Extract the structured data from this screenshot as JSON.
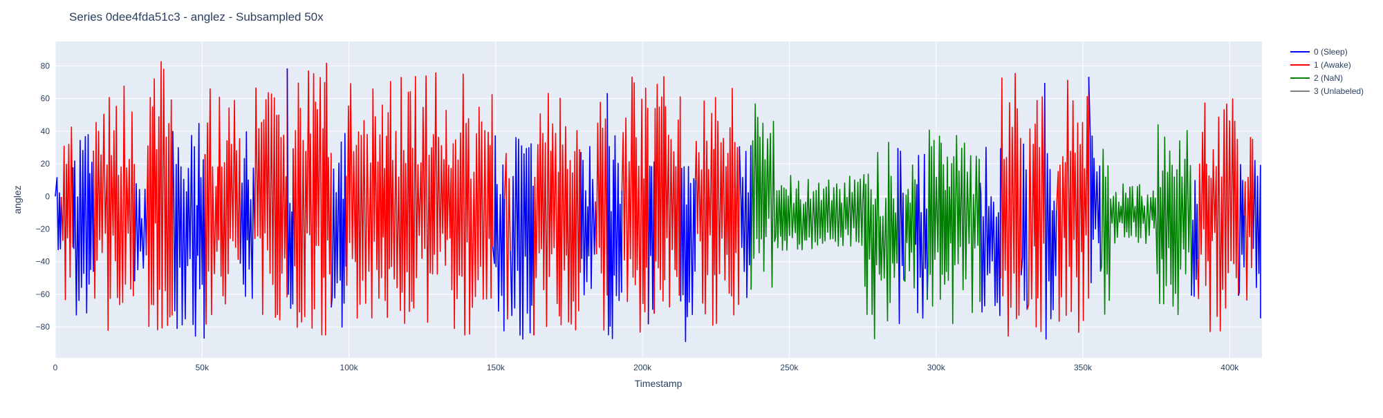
{
  "chart_data": {
    "type": "line",
    "title": "Series 0dee4fda51c3 - anglez - Subsampled 50x",
    "xlabel": "Timestamp",
    "ylabel": "anglez",
    "xlim": [
      0,
      411000
    ],
    "ylim": [
      -99,
      95
    ],
    "x_ticks": [
      0,
      50000,
      100000,
      150000,
      200000,
      250000,
      300000,
      350000,
      400000
    ],
    "x_tick_labels": [
      "0",
      "50k",
      "100k",
      "150k",
      "200k",
      "250k",
      "300k",
      "350k",
      "400k"
    ],
    "y_ticks": [
      80,
      60,
      40,
      20,
      0,
      -20,
      -40,
      -60,
      -80
    ],
    "y_tick_labels": [
      "80",
      "60",
      "40",
      "20",
      "0",
      "−20",
      "−40",
      "−60",
      "−80"
    ],
    "grid": true,
    "legend_position": "top-right",
    "background_color": "#e5ecf6",
    "series": [
      {
        "name": "0 (Sleep)",
        "color": "#0000ff"
      },
      {
        "name": "1 (Awake)",
        "color": "#ff0000"
      },
      {
        "name": "2 (NaN)",
        "color": "#008000"
      },
      {
        "name": "3 (Unlabeled)",
        "color": "#808080"
      }
    ],
    "segments": [
      {
        "series": "0 (Sleep)",
        "x_range": [
          0,
          2000
        ],
        "amplitude": 30,
        "center": -10
      },
      {
        "series": "1 (Awake)",
        "x_range": [
          2000,
          6000
        ],
        "amplitude": 55,
        "center": -10
      },
      {
        "series": "0 (Sleep)",
        "x_range": [
          6000,
          13000
        ],
        "amplitude": 55,
        "center": -15
      },
      {
        "series": "1 (Awake)",
        "x_range": [
          13000,
          27000
        ],
        "amplitude": 75,
        "center": -5
      },
      {
        "series": "0 (Sleep)",
        "x_range": [
          27000,
          31000
        ],
        "amplitude": 35,
        "center": -25
      },
      {
        "series": "1 (Awake)",
        "x_range": [
          31000,
          40000
        ],
        "amplitude": 80,
        "center": 0
      },
      {
        "series": "0 (Sleep)",
        "x_range": [
          40000,
          51000
        ],
        "amplitude": 65,
        "center": -20
      },
      {
        "series": "1 (Awake)",
        "x_range": [
          51000,
          63000
        ],
        "amplitude": 75,
        "center": -10
      },
      {
        "series": "0 (Sleep)",
        "x_range": [
          63000,
          68000
        ],
        "amplitude": 55,
        "center": -15
      },
      {
        "series": "1 (Awake)",
        "x_range": [
          68000,
          79000
        ],
        "amplitude": 80,
        "center": -5
      },
      {
        "series": "0 (Sleep)",
        "x_range": [
          79000,
          81000
        ],
        "amplitude": 50,
        "center": -20
      },
      {
        "series": "1 (Awake)",
        "x_range": [
          81000,
          94000
        ],
        "amplitude": 82,
        "center": 0
      },
      {
        "series": "0 (Sleep)",
        "x_range": [
          94000,
          99000
        ],
        "amplitude": 60,
        "center": -20
      },
      {
        "series": "1 (Awake)",
        "x_range": [
          99000,
          149000
        ],
        "amplitude": 78,
        "center": -5
      },
      {
        "series": "0 (Sleep)",
        "x_range": [
          149000,
          153000
        ],
        "amplitude": 60,
        "center": -20
      },
      {
        "series": "1 (Awake)",
        "x_range": [
          153000,
          155000
        ],
        "amplitude": 70,
        "center": -5
      },
      {
        "series": "0 (Sleep)",
        "x_range": [
          155000,
          163000
        ],
        "amplitude": 65,
        "center": -20
      },
      {
        "series": "1 (Awake)",
        "x_range": [
          163000,
          179000
        ],
        "amplitude": 75,
        "center": -5
      },
      {
        "series": "0 (Sleep)",
        "x_range": [
          179000,
          184000
        ],
        "amplitude": 55,
        "center": -20
      },
      {
        "series": "1 (Awake)",
        "x_range": [
          184000,
          188000
        ],
        "amplitude": 70,
        "center": -10
      },
      {
        "series": "0 (Sleep)",
        "x_range": [
          188000,
          193000
        ],
        "amplitude": 60,
        "center": -25
      },
      {
        "series": "1 (Awake)",
        "x_range": [
          193000,
          202000
        ],
        "amplitude": 75,
        "center": -5
      },
      {
        "series": "0 (Sleep)",
        "x_range": [
          202000,
          204000
        ],
        "amplitude": 55,
        "center": -20
      },
      {
        "series": "1 (Awake)",
        "x_range": [
          204000,
          213000
        ],
        "amplitude": 78,
        "center": -5
      },
      {
        "series": "0 (Sleep)",
        "x_range": [
          213000,
          218000
        ],
        "amplitude": 60,
        "center": -30
      },
      {
        "series": "1 (Awake)",
        "x_range": [
          218000,
          233000
        ],
        "amplitude": 72,
        "center": -5
      },
      {
        "series": "0 (Sleep)",
        "x_range": [
          233000,
          237000
        ],
        "amplitude": 45,
        "center": -15
      },
      {
        "series": "2 (NaN)",
        "x_range": [
          237000,
          245000
        ],
        "amplitude": 55,
        "center": 0
      },
      {
        "series": "2 (NaN)",
        "x_range": [
          245000,
          275000
        ],
        "amplitude": 22,
        "center": -10
      },
      {
        "series": "2 (NaN)",
        "x_range": [
          275000,
          287000
        ],
        "amplitude": 60,
        "center": -25
      },
      {
        "series": "0 (Sleep)",
        "x_range": [
          287000,
          289000
        ],
        "amplitude": 55,
        "center": -25
      },
      {
        "series": "2 (NaN)",
        "x_range": [
          289000,
          293000
        ],
        "amplitude": 40,
        "center": -15
      },
      {
        "series": "0 (Sleep)",
        "x_range": [
          293000,
          297000
        ],
        "amplitude": 50,
        "center": -25
      },
      {
        "series": "2 (NaN)",
        "x_range": [
          297000,
          315000
        ],
        "amplitude": 65,
        "center": -15
      },
      {
        "series": "0 (Sleep)",
        "x_range": [
          315000,
          322000
        ],
        "amplitude": 55,
        "center": -25
      },
      {
        "series": "1 (Awake)",
        "x_range": [
          322000,
          329000
        ],
        "amplitude": 80,
        "center": -5
      },
      {
        "series": "0 (Sleep)",
        "x_range": [
          329000,
          331000
        ],
        "amplitude": 55,
        "center": -20
      },
      {
        "series": "1 (Awake)",
        "x_range": [
          331000,
          337000
        ],
        "amplitude": 75,
        "center": -5
      },
      {
        "series": "0 (Sleep)",
        "x_range": [
          337000,
          341000
        ],
        "amplitude": 60,
        "center": -25
      },
      {
        "series": "1 (Awake)",
        "x_range": [
          341000,
          352000
        ],
        "amplitude": 75,
        "center": -5
      },
      {
        "series": "0 (Sleep)",
        "x_range": [
          352000,
          356000
        ],
        "amplitude": 45,
        "center": -10
      },
      {
        "series": "2 (NaN)",
        "x_range": [
          356000,
          359000
        ],
        "amplitude": 75,
        "center": -10
      },
      {
        "series": "2 (NaN)",
        "x_range": [
          359000,
          375000
        ],
        "amplitude": 18,
        "center": -10
      },
      {
        "series": "2 (NaN)",
        "x_range": [
          375000,
          387000
        ],
        "amplitude": 60,
        "center": -15
      },
      {
        "series": "0 (Sleep)",
        "x_range": [
          387000,
          389000
        ],
        "amplitude": 45,
        "center": -25
      },
      {
        "series": "1 (Awake)",
        "x_range": [
          389000,
          403000
        ],
        "amplitude": 75,
        "center": -5
      },
      {
        "series": "0 (Sleep)",
        "x_range": [
          403000,
          405000
        ],
        "amplitude": 50,
        "center": -25
      },
      {
        "series": "1 (Awake)",
        "x_range": [
          405000,
          408000
        ],
        "amplitude": 65,
        "center": -10
      },
      {
        "series": "0 (Sleep)",
        "x_range": [
          408000,
          410500
        ],
        "amplitude": 55,
        "center": -20
      }
    ]
  }
}
